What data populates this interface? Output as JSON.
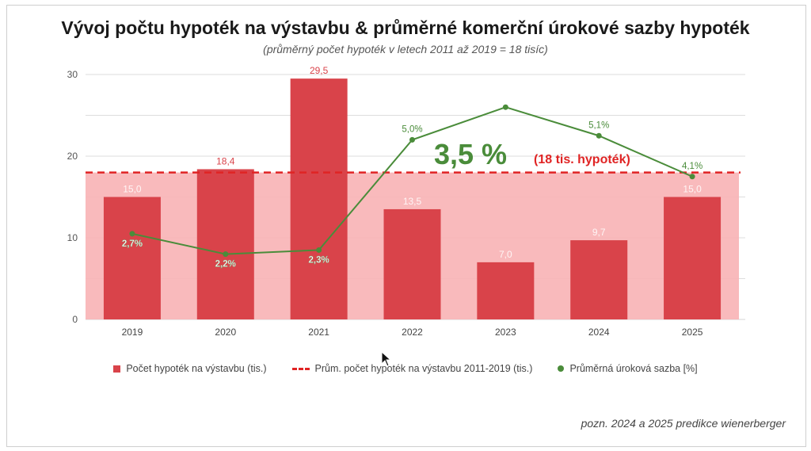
{
  "title": "Vývoj počtu hypoték na výstavbu & průměrné komerční úrokové sazby hypoték",
  "subtitle": "(průměrný počet hypoték v letech 2011 až 2019 = 18 tisíc)",
  "note": "pozn. 2024 a 2025 predikce wienerberger",
  "colors": {
    "bar": "#d9434a",
    "band": "#f8b3b5",
    "dashed": "#e02424",
    "line": "#4a8c3a",
    "grid": "#dddddd"
  },
  "legend": {
    "bars": "Počet hypoték na výstavbu (tis.)",
    "dashed": "Prům. počet hypoték na výstavbu 2011-2019 (tis.)",
    "line": "Průměrná úroková sazba [%]"
  },
  "chart_data": {
    "type": "bar",
    "categories": [
      "2019",
      "2020",
      "2021",
      "2022",
      "2023",
      "2024",
      "2025"
    ],
    "ylim": [
      0,
      30
    ],
    "yticks": [
      0,
      10,
      20,
      30
    ],
    "grid": true,
    "legend_position": "bottom",
    "series": [
      {
        "name": "Počet hypoték na výstavbu (tis.)",
        "type": "bar",
        "values": [
          15.0,
          18.4,
          29.5,
          13.5,
          7.0,
          9.7,
          15.0
        ],
        "labels": [
          "15,0",
          "18,4",
          "29,5",
          "13,5",
          "7,0",
          "9,7",
          "15,0"
        ]
      },
      {
        "name": "Průměrná úroková sazba [%]",
        "type": "line",
        "values": [
          2.7,
          2.2,
          2.3,
          5.0,
          5.8,
          5.1,
          4.1
        ],
        "labels": [
          "2,7%",
          "2,2%",
          "2,3%",
          "5,0%",
          "",
          "5,1%",
          "4,1%"
        ]
      }
    ],
    "reference_line": {
      "name": "Prům. počet hypoték na výstavbu 2011-2019 (tis.)",
      "value": 18,
      "annotation_big": "3,5 %",
      "annotation_small": "(18 tis. hypoték)"
    }
  }
}
